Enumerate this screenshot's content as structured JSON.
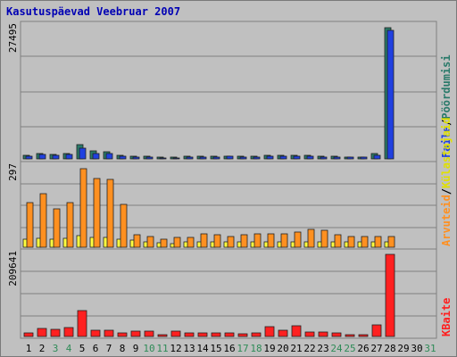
{
  "title": "Kasutuspäevad Veebruar 2007",
  "colors": {
    "title": "#0000b4",
    "background": "#c0c0c0",
    "bar_blue": "#2040e0",
    "bar_teal": "#2a7a6a",
    "bar_yellow": "#ffff40",
    "bar_orange": "#ff9020",
    "bar_red": "#ff2020",
    "weekend": "#2e8b57"
  },
  "chart_data": [
    {
      "type": "bar",
      "categories": [
        "1",
        "2",
        "3",
        "4",
        "5",
        "6",
        "7",
        "8",
        "9",
        "10",
        "11",
        "12",
        "13",
        "14",
        "15",
        "16",
        "17",
        "18",
        "19",
        "20",
        "21",
        "22",
        "23",
        "24",
        "25",
        "26",
        "27",
        "28",
        "29",
        "30",
        "31"
      ],
      "ymax_label": "27495",
      "ylim": [
        0,
        27495
      ],
      "series": [
        {
          "name": "Pöördumisi",
          "values": [
            700,
            1200,
            900,
            1100,
            3000,
            1600,
            1500,
            800,
            600,
            500,
            400,
            400,
            500,
            500,
            500,
            600,
            500,
            500,
            700,
            800,
            800,
            700,
            600,
            500,
            400,
            400,
            1100,
            27495,
            0,
            0,
            0
          ]
        },
        {
          "name": "Faile",
          "values": [
            500,
            900,
            700,
            900,
            2200,
            1100,
            1100,
            500,
            400,
            300,
            200,
            200,
            300,
            300,
            300,
            500,
            300,
            300,
            500,
            500,
            600,
            500,
            400,
            300,
            300,
            300,
            800,
            27000,
            0,
            0,
            0
          ]
        }
      ]
    },
    {
      "type": "bar",
      "categories": [
        "1",
        "2",
        "3",
        "4",
        "5",
        "6",
        "7",
        "8",
        "9",
        "10",
        "11",
        "12",
        "13",
        "14",
        "15",
        "16",
        "17",
        "18",
        "19",
        "20",
        "21",
        "22",
        "23",
        "24",
        "25",
        "26",
        "27",
        "28",
        "29",
        "30",
        "31"
      ],
      "ymax_label": "297",
      "ylim": [
        0,
        297
      ],
      "series": [
        {
          "name": "Külastajaid",
          "values": [
            30,
            32,
            28,
            32,
            42,
            35,
            35,
            30,
            25,
            20,
            15,
            12,
            18,
            18,
            18,
            18,
            18,
            18,
            20,
            20,
            20,
            20,
            20,
            18,
            18,
            18,
            18,
            18,
            0,
            0,
            0
          ]
        },
        {
          "name": "Arvuteid",
          "values": [
            160,
            195,
            140,
            160,
            285,
            250,
            245,
            155,
            45,
            40,
            28,
            35,
            35,
            50,
            45,
            40,
            45,
            50,
            50,
            50,
            55,
            65,
            60,
            45,
            40,
            40,
            40,
            40,
            0,
            0,
            0
          ]
        }
      ]
    },
    {
      "type": "bar",
      "categories": [
        "1",
        "2",
        "3",
        "4",
        "5",
        "6",
        "7",
        "8",
        "9",
        "10",
        "11",
        "12",
        "13",
        "14",
        "15",
        "16",
        "17",
        "18",
        "19",
        "20",
        "21",
        "22",
        "23",
        "24",
        "25",
        "26",
        "27",
        "28",
        "29",
        "30",
        "31"
      ],
      "ymax_label": "209641",
      "ylim": [
        0,
        209641
      ],
      "series": [
        {
          "name": "KBaite",
          "values": [
            8000,
            20000,
            18000,
            22000,
            65000,
            16000,
            16000,
            10000,
            13000,
            13000,
            4000,
            14000,
            10000,
            10000,
            10000,
            9000,
            6000,
            9000,
            24000,
            17000,
            28000,
            11000,
            11000,
            10000,
            5000,
            5000,
            30000,
            209641,
            0,
            0,
            0
          ]
        }
      ]
    }
  ],
  "legend_top": {
    "p1": "Faile",
    "sep": "/",
    "p2": "Pöördumisi"
  },
  "legend_mid": {
    "p1": "Arvuteid",
    "sep": "/",
    "p2": "Külastajaid"
  },
  "legend_bot": {
    "p1": "KBaite"
  },
  "weekend_days": [
    3,
    4,
    10,
    11,
    17,
    18,
    24,
    25,
    31
  ]
}
